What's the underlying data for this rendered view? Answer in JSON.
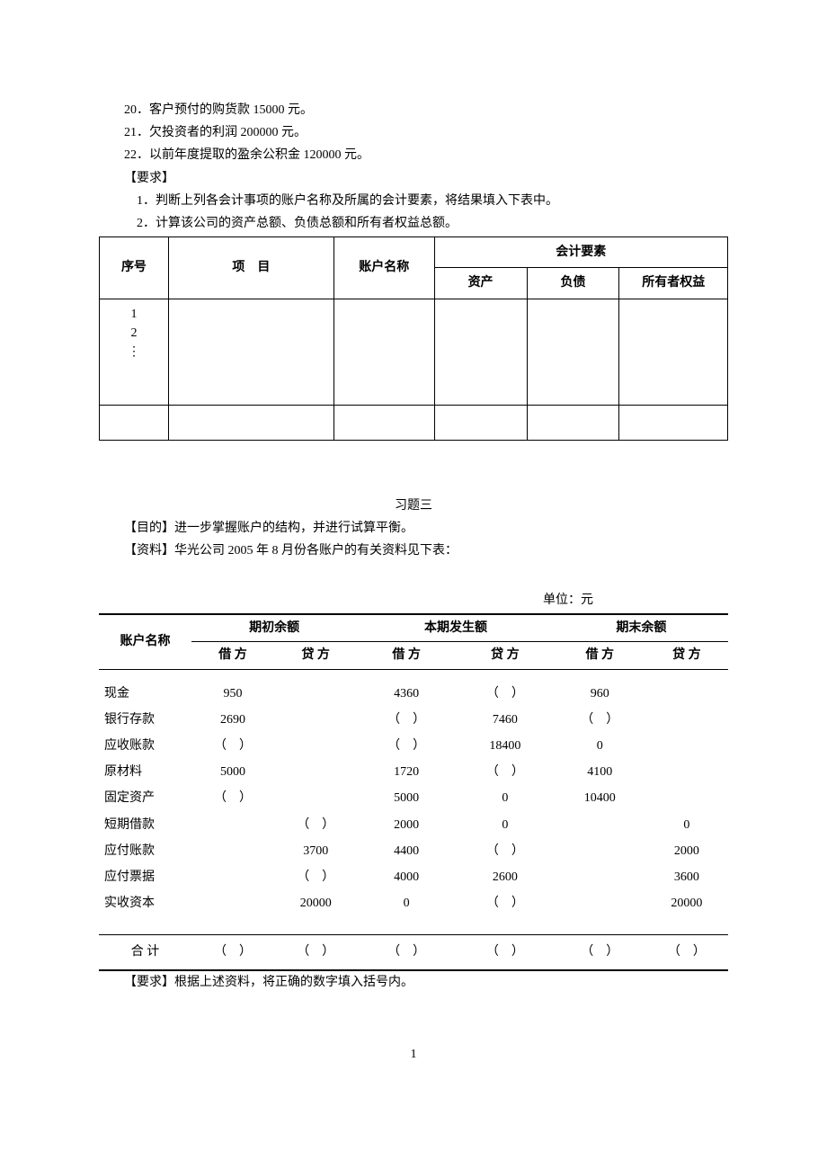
{
  "items": [
    "20．客户预付的购货款 15000 元。",
    "21．欠投资者的利润 200000 元。",
    "22．以前年度提取的盈余公积金 120000 元。"
  ],
  "req_label": "【要求】",
  "reqs": [
    "1．判断上列各会计事项的账户名称及所属的会计要素，将结果填入下表中。",
    "2．计算该公司的资产总额、负债总额和所有者权益总额。"
  ],
  "t1": {
    "h_seq": "序号",
    "h_item": "项　目",
    "h_account": "账户名称",
    "h_element": "会计要素",
    "h_asset": "资产",
    "h_liab": "负债",
    "h_equity": "所有者权益",
    "seq_body": "1\n2\n⋮"
  },
  "ex3": {
    "title": "习题三",
    "purpose": "【目的】进一步掌握账户的结构，并进行试算平衡。",
    "data": "【资料】华光公司 2005 年 8 月份各账户的有关资料见下表："
  },
  "unit_label": "单位：元",
  "t2": {
    "h_account": "账户名称",
    "h_begin": "期初余额",
    "h_current": "本期发生额",
    "h_end": "期末余额",
    "h_dr": "借 方",
    "h_cr": "贷 方",
    "blank": "（　）",
    "rows": [
      {
        "acct": "现金",
        "bd": "950",
        "bc": "",
        "cd": "4360",
        "cc": "（　）",
        "ed": "960",
        "ec": ""
      },
      {
        "acct": "银行存款",
        "bd": "2690",
        "bc": "",
        "cd": "（　）",
        "cc": "7460",
        "ed": "（　）",
        "ec": ""
      },
      {
        "acct": "应收账款",
        "bd": "（　）",
        "bc": "",
        "cd": "（　）",
        "cc": "18400",
        "ed": "0",
        "ec": ""
      },
      {
        "acct": "原材料",
        "bd": "5000",
        "bc": "",
        "cd": "1720",
        "cc": "（　）",
        "ed": "4100",
        "ec": ""
      },
      {
        "acct": "固定资产",
        "bd": "（　）",
        "bc": "",
        "cd": "5000",
        "cc": "0",
        "ed": "10400",
        "ec": ""
      },
      {
        "acct": "短期借款",
        "bd": "",
        "bc": "（　）",
        "cd": "2000",
        "cc": "0",
        "ed": "",
        "ec": "0"
      },
      {
        "acct": "应付账款",
        "bd": "",
        "bc": "3700",
        "cd": "4400",
        "cc": "（　）",
        "ed": "",
        "ec": "2000"
      },
      {
        "acct": "应付票据",
        "bd": "",
        "bc": "（　）",
        "cd": "4000",
        "cc": "2600",
        "ed": "",
        "ec": "3600"
      },
      {
        "acct": "实收资本",
        "bd": "",
        "bc": "20000",
        "cd": "0",
        "cc": "（　）",
        "ed": "",
        "ec": "20000"
      }
    ],
    "sum_label": "合 计"
  },
  "req2": "【要求】根据上述资料，将正确的数字填入括号内。",
  "page_num": "1"
}
